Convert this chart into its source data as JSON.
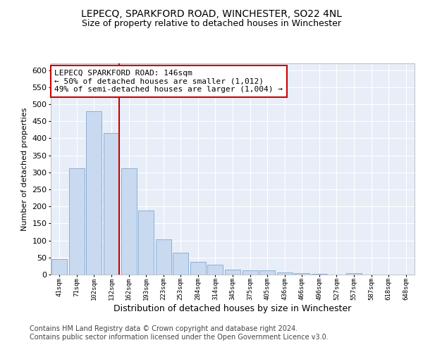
{
  "title": "LEPECQ, SPARKFORD ROAD, WINCHESTER, SO22 4NL",
  "subtitle": "Size of property relative to detached houses in Winchester",
  "xlabel": "Distribution of detached houses by size in Winchester",
  "ylabel": "Number of detached properties",
  "categories": [
    "41sqm",
    "71sqm",
    "102sqm",
    "132sqm",
    "162sqm",
    "193sqm",
    "223sqm",
    "253sqm",
    "284sqm",
    "314sqm",
    "345sqm",
    "375sqm",
    "405sqm",
    "436sqm",
    "466sqm",
    "496sqm",
    "527sqm",
    "557sqm",
    "587sqm",
    "618sqm",
    "648sqm"
  ],
  "values": [
    45,
    313,
    480,
    415,
    313,
    188,
    103,
    65,
    37,
    28,
    14,
    13,
    13,
    7,
    5,
    3,
    1,
    5,
    1,
    1,
    1
  ],
  "bar_color": "#c9d9f0",
  "bar_edge_color": "#7fa8d0",
  "red_line_index": 3,
  "red_line_color": "#cc0000",
  "annotation_text": "LEPECQ SPARKFORD ROAD: 146sqm\n← 50% of detached houses are smaller (1,012)\n49% of semi-detached houses are larger (1,004) →",
  "annotation_box_facecolor": "#ffffff",
  "annotation_box_edgecolor": "#cc0000",
  "ylim": [
    0,
    620
  ],
  "yticks": [
    0,
    50,
    100,
    150,
    200,
    250,
    300,
    350,
    400,
    450,
    500,
    550,
    600
  ],
  "background_color": "#e8eef8",
  "grid_color": "#ffffff",
  "footer1": "Contains HM Land Registry data © Crown copyright and database right 2024.",
  "footer2": "Contains public sector information licensed under the Open Government Licence v3.0.",
  "title_fontsize": 10,
  "subtitle_fontsize": 9,
  "ylabel_fontsize": 8,
  "xlabel_fontsize": 9,
  "annotation_fontsize": 8,
  "xtick_fontsize": 6.5,
  "ytick_fontsize": 8,
  "footer_fontsize": 7
}
